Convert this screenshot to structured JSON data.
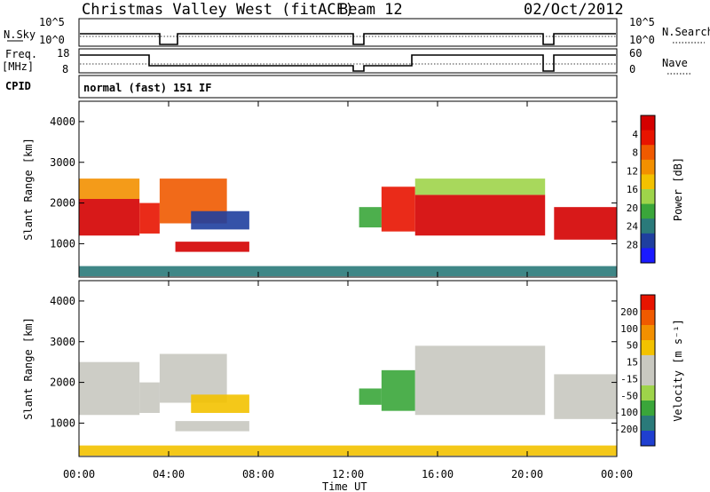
{
  "header": {
    "title": "Christmas Valley West (fitACF)",
    "beam": "Beam 12",
    "date": "02/Oct/2012"
  },
  "nsky_panel": {
    "left_label": "N.Sky",
    "right_label": "N.Search",
    "left_ticks": [
      "10^5",
      "10^0"
    ],
    "right_ticks": [
      "10^5",
      "10^0"
    ]
  },
  "freq_panel": {
    "left_label_1": "Freq.",
    "left_label_2": "[MHz]",
    "right_label": "Nave",
    "left_ticks": [
      "18",
      "8"
    ],
    "right_ticks": [
      "60",
      "0"
    ]
  },
  "cpid": {
    "label": "CPID",
    "value": "normal (fast) 151 IF"
  },
  "chart_data": [
    {
      "type": "heatmap",
      "name": "power",
      "ylabel": "Slant Range [km]",
      "yticks": [
        "1000",
        "2000",
        "3000",
        "4000"
      ],
      "ylim": [
        180,
        4500
      ],
      "xlim": [
        0,
        24
      ],
      "colorbar": {
        "label": "Power [dB]",
        "ticks": [
          "4",
          "8",
          "12",
          "16",
          "20",
          "24",
          "28"
        ],
        "colors": [
          "#1a1aff",
          "#1f3f9f",
          "#2a7a7a",
          "#3aa63a",
          "#9ed44a",
          "#f3c200",
          "#f39000",
          "#f05a00",
          "#e81400",
          "#d40000"
        ]
      },
      "regions": [
        {
          "t0": 0.0,
          "t1": 2.7,
          "r0": 1200,
          "r1": 2100,
          "level": 9
        },
        {
          "t0": 0.0,
          "t1": 2.7,
          "r0": 2100,
          "r1": 2600,
          "level": 6
        },
        {
          "t0": 2.7,
          "t1": 3.6,
          "r0": 1250,
          "r1": 2000,
          "level": 8
        },
        {
          "t0": 3.6,
          "t1": 6.6,
          "r0": 1500,
          "r1": 2600,
          "level": 7
        },
        {
          "t0": 4.3,
          "t1": 7.6,
          "r0": 800,
          "r1": 1050,
          "level": 9
        },
        {
          "t0": 5.0,
          "t1": 7.6,
          "r0": 1350,
          "r1": 1800,
          "level": 1
        },
        {
          "t0": 12.5,
          "t1": 13.5,
          "r0": 1400,
          "r1": 1900,
          "level": 3
        },
        {
          "t0": 13.5,
          "t1": 15.0,
          "r0": 1300,
          "r1": 2400,
          "level": 8
        },
        {
          "t0": 15.0,
          "t1": 20.8,
          "r0": 1200,
          "r1": 2200,
          "level": 9
        },
        {
          "t0": 15.0,
          "t1": 20.8,
          "r0": 2200,
          "r1": 2600,
          "level": 4
        },
        {
          "t0": 21.2,
          "t1": 24.0,
          "r0": 1100,
          "r1": 1900,
          "level": 9
        },
        {
          "t0": 0.0,
          "t1": 24.0,
          "r0": 200,
          "r1": 450,
          "level": 2
        }
      ]
    },
    {
      "type": "heatmap",
      "name": "velocity",
      "ylabel": "Slant Range [km]",
      "xlabel": "Time UT",
      "yticks": [
        "1000",
        "2000",
        "3000",
        "4000"
      ],
      "xticks": [
        "00:00",
        "04:00",
        "08:00",
        "12:00",
        "16:00",
        "20:00",
        "00:00"
      ],
      "ylim": [
        180,
        4500
      ],
      "xlim": [
        0,
        24
      ],
      "colorbar": {
        "label": "Velocity [m s⁻¹]",
        "ticks": [
          "200",
          "100",
          "50",
          "15",
          "-15",
          "-50",
          "-100",
          "-200"
        ],
        "colors": [
          "#1f3fd0",
          "#2a7a7a",
          "#3aa63a",
          "#9ed44a",
          "#c8c8c0",
          "#c8c8c0",
          "#f3c200",
          "#f39000",
          "#f05a00",
          "#e81400"
        ]
      },
      "regions": [
        {
          "t0": 0.0,
          "t1": 2.7,
          "r0": 1200,
          "r1": 2500,
          "level": 4
        },
        {
          "t0": 2.7,
          "t1": 3.6,
          "r0": 1250,
          "r1": 2000,
          "level": 4
        },
        {
          "t0": 3.6,
          "t1": 6.6,
          "r0": 1500,
          "r1": 2700,
          "level": 4
        },
        {
          "t0": 4.3,
          "t1": 7.6,
          "r0": 800,
          "r1": 1050,
          "level": 4
        },
        {
          "t0": 5.0,
          "t1": 7.6,
          "r0": 1250,
          "r1": 1700,
          "level": 6
        },
        {
          "t0": 12.5,
          "t1": 13.5,
          "r0": 1450,
          "r1": 1850,
          "level": 2
        },
        {
          "t0": 13.5,
          "t1": 15.0,
          "r0": 1300,
          "r1": 2300,
          "level": 2
        },
        {
          "t0": 15.0,
          "t1": 20.8,
          "r0": 1200,
          "r1": 2900,
          "level": 4
        },
        {
          "t0": 21.2,
          "t1": 24.0,
          "r0": 1100,
          "r1": 2200,
          "level": 4
        },
        {
          "t0": 0.0,
          "t1": 24.0,
          "r0": 200,
          "r1": 450,
          "level": 6
        }
      ]
    }
  ]
}
